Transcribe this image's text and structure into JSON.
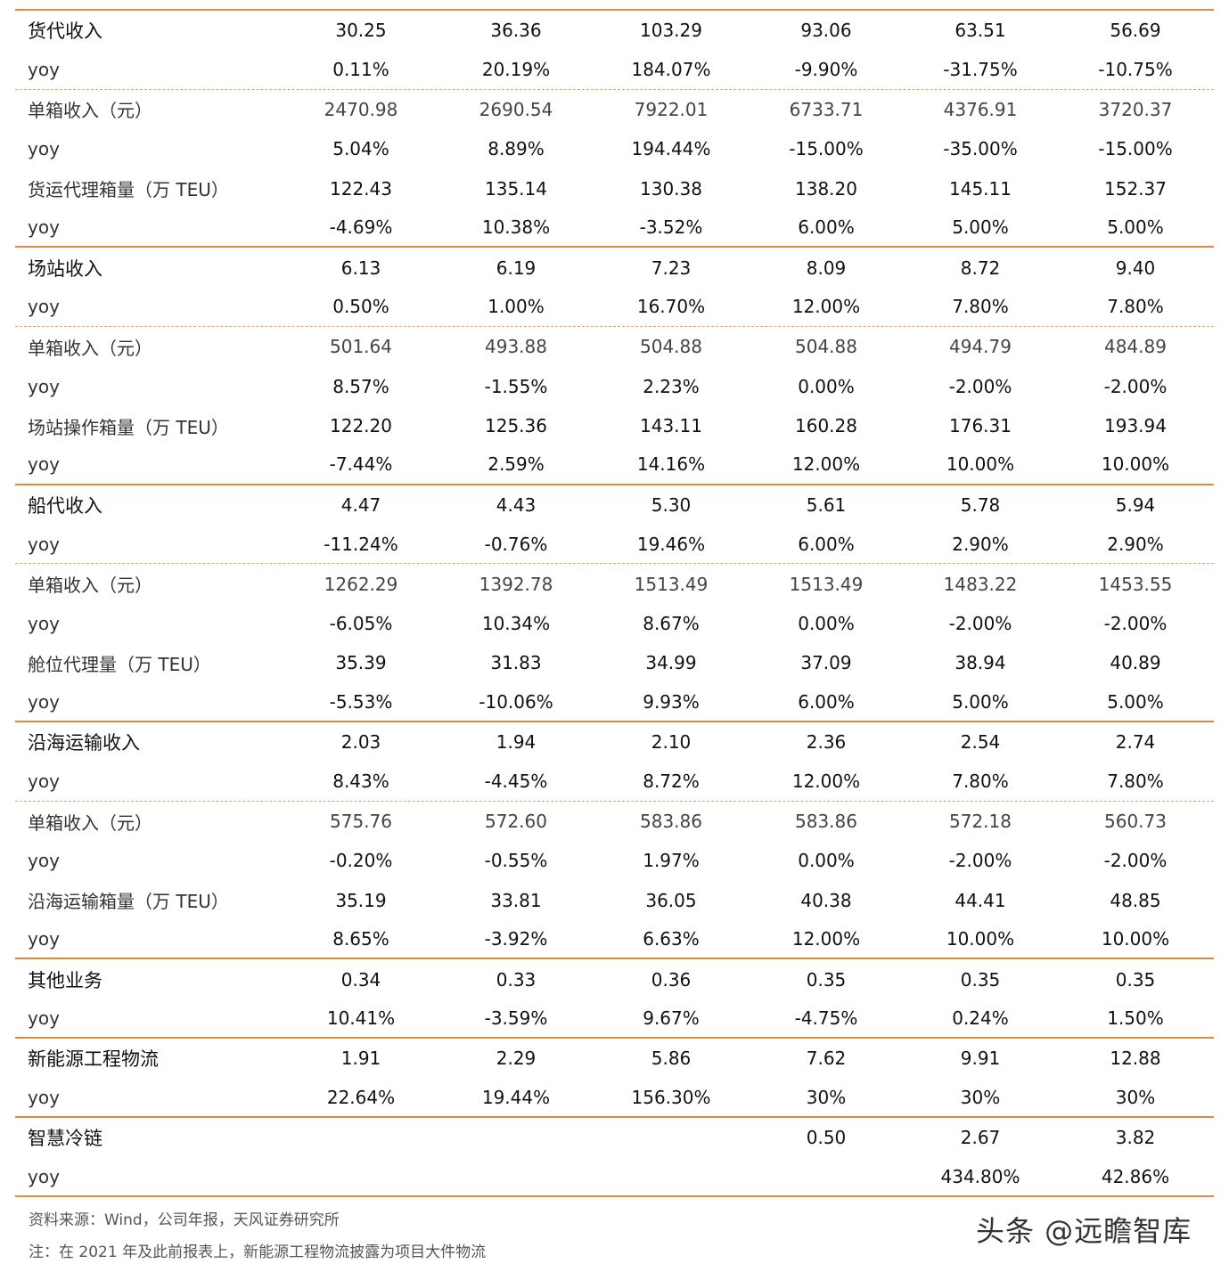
{
  "rows": [
    {
      "label": "货代收入",
      "sub": false,
      "values": [
        "30.25",
        "36.36",
        "103.29",
        "93.06",
        "63.51",
        "56.69"
      ],
      "border": "none"
    },
    {
      "label": "yoy",
      "sub": true,
      "values": [
        "0.11%",
        "20.19%",
        "184.07%",
        "-9.90%",
        "-31.75%",
        "-10.75%"
      ],
      "border": "dash"
    },
    {
      "label": "单箱收入（元）",
      "sub": true,
      "values": [
        "2470.98",
        "2690.54",
        "7922.01",
        "6733.71",
        "4376.91",
        "3720.37"
      ],
      "border": "none",
      "grey": true
    },
    {
      "label": "yoy",
      "sub": true,
      "values": [
        "5.04%",
        "8.89%",
        "194.44%",
        "-15.00%",
        "-35.00%",
        "-15.00%"
      ],
      "border": "none"
    },
    {
      "label": "货运代理箱量（万 TEU）",
      "sub": true,
      "values": [
        "122.43",
        "135.14",
        "130.38",
        "138.20",
        "145.11",
        "152.37"
      ],
      "border": "none"
    },
    {
      "label": "yoy",
      "sub": true,
      "values": [
        "-4.69%",
        "10.38%",
        "-3.52%",
        "6.00%",
        "5.00%",
        "5.00%"
      ],
      "border": "solid"
    },
    {
      "label": "场站收入",
      "sub": false,
      "values": [
        "6.13",
        "6.19",
        "7.23",
        "8.09",
        "8.72",
        "9.40"
      ],
      "border": "none"
    },
    {
      "label": "yoy",
      "sub": true,
      "values": [
        "0.50%",
        "1.00%",
        "16.70%",
        "12.00%",
        "7.80%",
        "7.80%"
      ],
      "border": "dash"
    },
    {
      "label": "单箱收入（元）",
      "sub": true,
      "values": [
        "501.64",
        "493.88",
        "504.88",
        "504.88",
        "494.79",
        "484.89"
      ],
      "border": "none",
      "grey": true
    },
    {
      "label": "yoy",
      "sub": true,
      "values": [
        "8.57%",
        "-1.55%",
        "2.23%",
        "0.00%",
        "-2.00%",
        "-2.00%"
      ],
      "border": "none"
    },
    {
      "label": "场站操作箱量（万 TEU）",
      "sub": true,
      "values": [
        "122.20",
        "125.36",
        "143.11",
        "160.28",
        "176.31",
        "193.94"
      ],
      "border": "none"
    },
    {
      "label": "yoy",
      "sub": true,
      "values": [
        "-7.44%",
        "2.59%",
        "14.16%",
        "12.00%",
        "10.00%",
        "10.00%"
      ],
      "border": "solid"
    },
    {
      "label": "船代收入",
      "sub": false,
      "values": [
        "4.47",
        "4.43",
        "5.30",
        "5.61",
        "5.78",
        "5.94"
      ],
      "border": "none"
    },
    {
      "label": "yoy",
      "sub": true,
      "values": [
        "-11.24%",
        "-0.76%",
        "19.46%",
        "6.00%",
        "2.90%",
        "2.90%"
      ],
      "border": "dash"
    },
    {
      "label": "单箱收入（元）",
      "sub": true,
      "values": [
        "1262.29",
        "1392.78",
        "1513.49",
        "1513.49",
        "1483.22",
        "1453.55"
      ],
      "border": "none",
      "grey": true
    },
    {
      "label": "yoy",
      "sub": true,
      "values": [
        "-6.05%",
        "10.34%",
        "8.67%",
        "0.00%",
        "-2.00%",
        "-2.00%"
      ],
      "border": "none"
    },
    {
      "label": "舱位代理量（万 TEU）",
      "sub": true,
      "values": [
        "35.39",
        "31.83",
        "34.99",
        "37.09",
        "38.94",
        "40.89"
      ],
      "border": "none"
    },
    {
      "label": "yoy",
      "sub": true,
      "values": [
        "-5.53%",
        "-10.06%",
        "9.93%",
        "6.00%",
        "5.00%",
        "5.00%"
      ],
      "border": "solid"
    },
    {
      "label": "沿海运输收入",
      "sub": false,
      "values": [
        "2.03",
        "1.94",
        "2.10",
        "2.36",
        "2.54",
        "2.74"
      ],
      "border": "none"
    },
    {
      "label": "yoy",
      "sub": true,
      "values": [
        "8.43%",
        "-4.45%",
        "8.72%",
        "12.00%",
        "7.80%",
        "7.80%"
      ],
      "border": "dash"
    },
    {
      "label": "单箱收入（元）",
      "sub": true,
      "values": [
        "575.76",
        "572.60",
        "583.86",
        "583.86",
        "572.18",
        "560.73"
      ],
      "border": "none",
      "grey": true
    },
    {
      "label": "yoy",
      "sub": true,
      "values": [
        "-0.20%",
        "-0.55%",
        "1.97%",
        "0.00%",
        "-2.00%",
        "-2.00%"
      ],
      "border": "none"
    },
    {
      "label": "沿海运输箱量（万 TEU）",
      "sub": true,
      "values": [
        "35.19",
        "33.81",
        "36.05",
        "40.38",
        "44.41",
        "48.85"
      ],
      "border": "none"
    },
    {
      "label": "yoy",
      "sub": true,
      "values": [
        "8.65%",
        "-3.92%",
        "6.63%",
        "12.00%",
        "10.00%",
        "10.00%"
      ],
      "border": "solid"
    },
    {
      "label": "其他业务",
      "sub": false,
      "values": [
        "0.34",
        "0.33",
        "0.36",
        "0.35",
        "0.35",
        "0.35"
      ],
      "border": "none"
    },
    {
      "label": "yoy",
      "sub": true,
      "values": [
        "10.41%",
        "-3.59%",
        "9.67%",
        "-4.75%",
        "0.24%",
        "1.50%"
      ],
      "border": "solid"
    },
    {
      "label": "新能源工程物流",
      "sub": false,
      "values": [
        "1.91",
        "2.29",
        "5.86",
        "7.62",
        "9.91",
        "12.88"
      ],
      "border": "none"
    },
    {
      "label": "yoy",
      "sub": true,
      "values": [
        "22.64%",
        "19.44%",
        "156.30%",
        "30%",
        "30%",
        "30%"
      ],
      "border": "solid"
    },
    {
      "label": "智慧冷链",
      "sub": false,
      "values": [
        "",
        "",
        "",
        "0.50",
        "2.67",
        "3.82"
      ],
      "border": "none"
    },
    {
      "label": "yoy",
      "sub": true,
      "values": [
        "",
        "",
        "",
        "",
        "434.80%",
        "42.86%"
      ],
      "border": "solid"
    }
  ],
  "footer": {
    "source": "资料来源：Wind，公司年报，天风证券研究所",
    "note": "注：在 2021 年及此前报表上，新能源工程物流披露为项目大件物流"
  },
  "watermark": "头条 @远瞻智库"
}
